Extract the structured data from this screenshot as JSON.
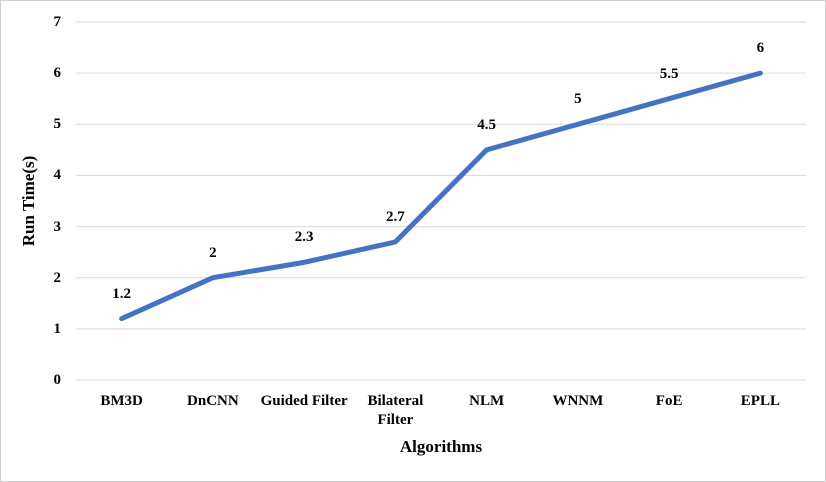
{
  "chart_data": {
    "type": "line",
    "title": "",
    "xlabel": "Algorithms",
    "ylabel": "Run Time(s)",
    "categories": [
      "BM3D",
      "DnCNN",
      "Guided Filter",
      "Bilateral Filter",
      "NLM",
      "WNNM",
      "FoE",
      "EPLL"
    ],
    "values": [
      1.2,
      2,
      2.3,
      2.7,
      4.5,
      5,
      5.5,
      6
    ],
    "data_labels": [
      "1.2",
      "2",
      "2.3",
      "2.7",
      "4.5",
      "5",
      "5.5",
      "6"
    ],
    "y_ticks": [
      "0",
      "1",
      "2",
      "3",
      "4",
      "5",
      "6",
      "7"
    ],
    "ylim": [
      0,
      7
    ],
    "grid": true,
    "legend_position": "none",
    "line_color": "#4472c4",
    "gridline_color": "#d9d9d9",
    "text_color": "#000000"
  }
}
